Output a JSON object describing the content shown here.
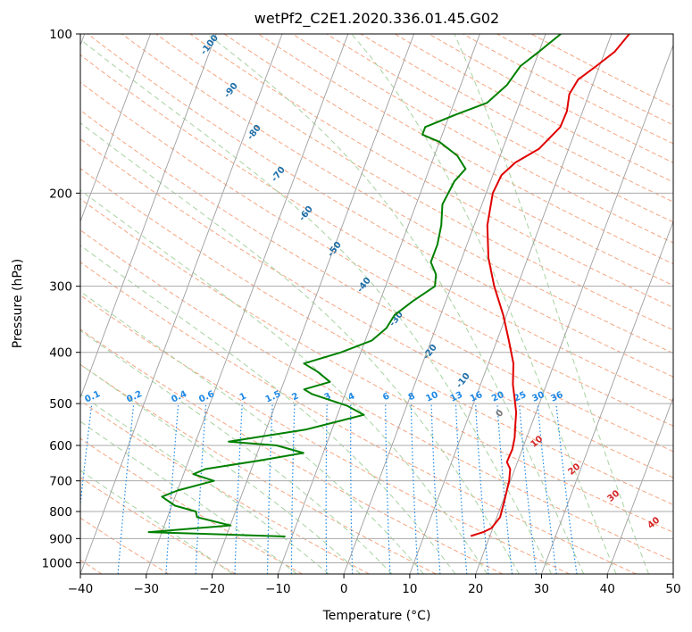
{
  "chart_data": {
    "type": "line",
    "title": "wetPf2_C2E1.2020.336.01.45.G02",
    "xlabel": "Temperature (°C)",
    "ylabel": "Pressure (hPa)",
    "xlim": [
      -40,
      50
    ],
    "ylim": [
      1050,
      100
    ],
    "y_scale": "log",
    "grid": true,
    "x_ticks": [
      "−40",
      "−30",
      "−20",
      "−10",
      "0",
      "10",
      "20",
      "30",
      "40",
      "50"
    ],
    "y_ticks": [
      "100",
      "200",
      "300",
      "400",
      "500",
      "600",
      "700",
      "800",
      "900",
      "1000"
    ],
    "colors": {
      "temperature": "#e00000",
      "dewpoint": "#008000",
      "isotherm": "#9e9e9e",
      "dry_adiabat": "#f4a582",
      "moist_adiabat": "#a6d3a0",
      "mixing_ratio": "#1e88e5",
      "isobar": "#aaaaaa",
      "moist_label": "#1f6fa8",
      "dry_label": "#d62728"
    },
    "series": [
      {
        "color": "#e00000",
        "points": [
          [
            17.1,
            890
          ],
          [
            18.8,
            875
          ],
          [
            19.8,
            860
          ],
          [
            20.5,
            820
          ],
          [
            20.2,
            760
          ],
          [
            19.8,
            700
          ],
          [
            19.3,
            665
          ],
          [
            18.4,
            645
          ],
          [
            18.5,
            610
          ],
          [
            18.2,
            580
          ],
          [
            17.6,
            550
          ],
          [
            17.0,
            520
          ],
          [
            16.0,
            490
          ],
          [
            14.9,
            460
          ],
          [
            13.8,
            420
          ],
          [
            11.8,
            380
          ],
          [
            9.5,
            340
          ],
          [
            6.5,
            300
          ],
          [
            4.0,
            265
          ],
          [
            2.0,
            230
          ],
          [
            1.0,
            200
          ],
          [
            1.3,
            185
          ],
          [
            2.7,
            175
          ],
          [
            5.5,
            165
          ],
          [
            7.5,
            150
          ],
          [
            7.6,
            140
          ],
          [
            7.0,
            130
          ],
          [
            7.5,
            122
          ],
          [
            9.5,
            115
          ],
          [
            11.5,
            108
          ],
          [
            12.7,
            100
          ]
        ]
      },
      {
        "color": "#008000",
        "points": [
          [
            -11.0,
            892
          ],
          [
            -32.0,
            875
          ],
          [
            -20.0,
            850
          ],
          [
            -25.5,
            820
          ],
          [
            -26.0,
            800
          ],
          [
            -29.5,
            780
          ],
          [
            -32.0,
            750
          ],
          [
            -30.0,
            730
          ],
          [
            -25.0,
            700
          ],
          [
            -28.5,
            680
          ],
          [
            -27.0,
            665
          ],
          [
            -19.0,
            640
          ],
          [
            -13.0,
            620
          ],
          [
            -17.5,
            600
          ],
          [
            -25.0,
            590
          ],
          [
            -14.0,
            560
          ],
          [
            -6.0,
            525
          ],
          [
            -9.0,
            505
          ],
          [
            -15.0,
            480
          ],
          [
            -16.5,
            470
          ],
          [
            -13.0,
            455
          ],
          [
            -15.5,
            435
          ],
          [
            -18.0,
            420
          ],
          [
            -13.0,
            400
          ],
          [
            -9.0,
            380
          ],
          [
            -7.5,
            360
          ],
          [
            -7.0,
            340
          ],
          [
            -5.0,
            320
          ],
          [
            -2.5,
            300
          ],
          [
            -3.0,
            285
          ],
          [
            -4.5,
            270
          ],
          [
            -4.5,
            250
          ],
          [
            -5.0,
            230
          ],
          [
            -6.0,
            210
          ],
          [
            -5.5,
            190
          ],
          [
            -4.5,
            180
          ],
          [
            -6.5,
            170
          ],
          [
            -10.0,
            160
          ],
          [
            -13.0,
            155
          ],
          [
            -13.0,
            150
          ],
          [
            -9.0,
            142
          ],
          [
            -5.0,
            135
          ],
          [
            -3.0,
            125
          ],
          [
            -2.0,
            115
          ],
          [
            0.0,
            108
          ],
          [
            2.3,
            100
          ]
        ]
      }
    ],
    "moist_labels": [
      "-100",
      "-90",
      "-80",
      "-70",
      "-60",
      "-50",
      "-40",
      "-30",
      "-20",
      "-10",
      "0"
    ],
    "mixing_ratio_labels": [
      "0.1",
      "0.2",
      "0.4",
      "0.6",
      "1",
      "1.5",
      "2",
      "3",
      "4",
      "6",
      "8",
      "10",
      "13",
      "16",
      "20",
      "25",
      "30",
      "36"
    ],
    "dry_labels": [
      "10",
      "20",
      "30",
      "40"
    ]
  }
}
